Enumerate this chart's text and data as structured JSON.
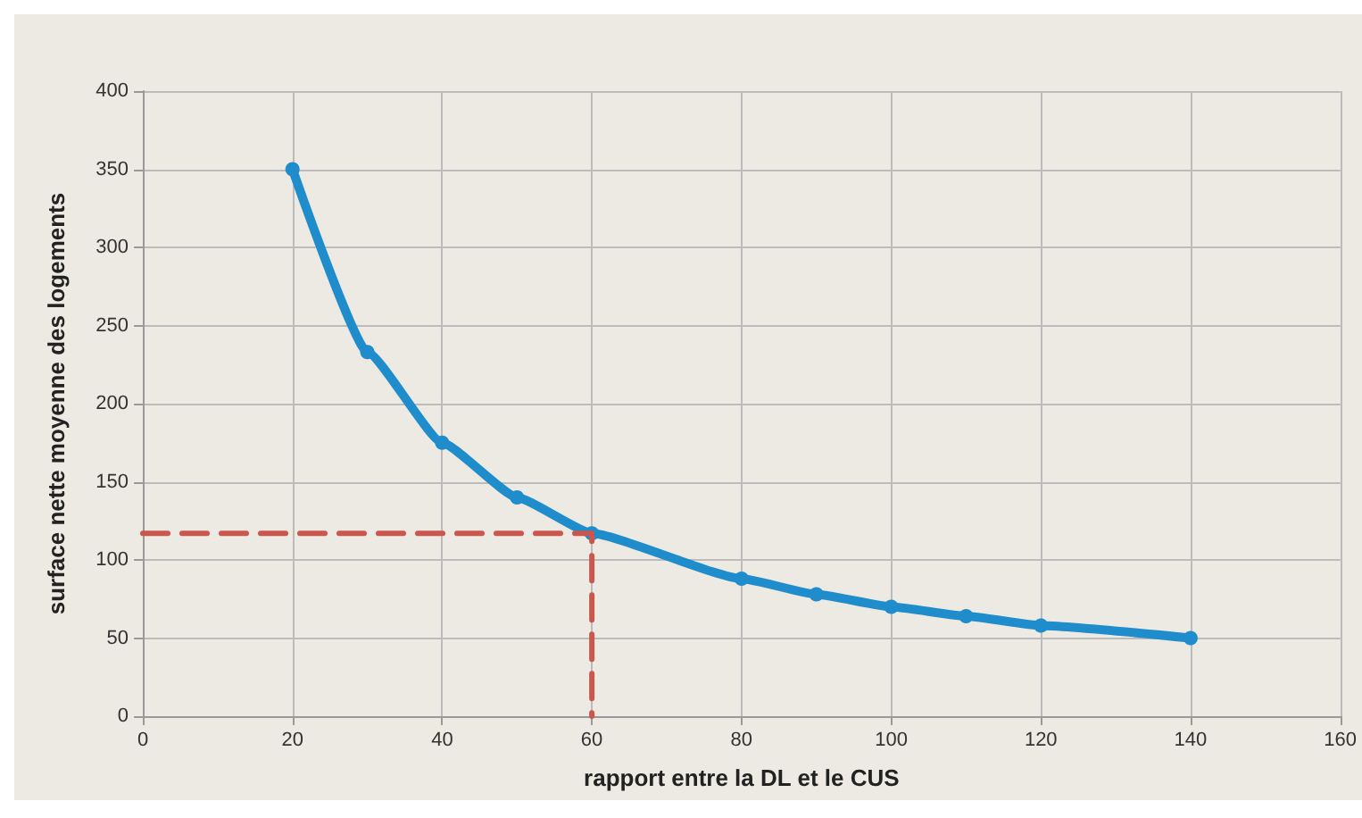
{
  "chart_data": {
    "type": "line",
    "xlabel": "rapport entre la DL et le CUS",
    "ylabel": "surface nette moyenne des logements",
    "xlim": [
      0,
      160
    ],
    "xticks": [
      0,
      20,
      40,
      60,
      80,
      100,
      120,
      140,
      160
    ],
    "ylim": [
      0,
      400
    ],
    "yticks": [
      0,
      50,
      100,
      150,
      200,
      250,
      300,
      350,
      400
    ],
    "grid": true,
    "marker": "circle",
    "series": [
      {
        "color": "#1f8ccc",
        "x": [
          20,
          30,
          40,
          50,
          60,
          80,
          90,
          100,
          110,
          120,
          140
        ],
        "values": [
          350,
          233,
          175,
          140,
          117,
          88,
          78,
          70,
          64,
          58,
          50
        ],
        "line_style": "solid"
      },
      {
        "color": "#c9574e",
        "x": [
          0,
          60,
          60
        ],
        "values": [
          117,
          117,
          0
        ],
        "line_style": "dashed",
        "marker": "none"
      }
    ]
  }
}
